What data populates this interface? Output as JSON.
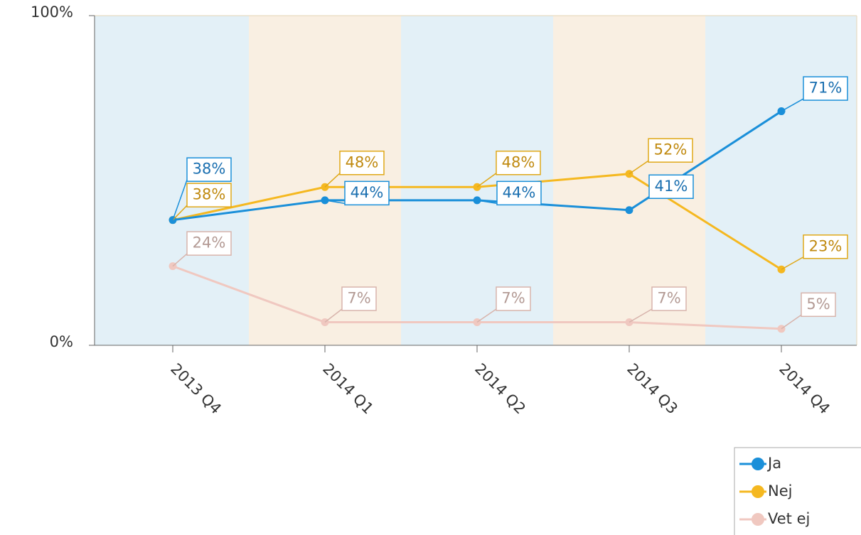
{
  "chart_data": {
    "type": "line",
    "categories": [
      "2013 Q4",
      "2014 Q1",
      "2014 Q2",
      "2014 Q3",
      "2014 Q4"
    ],
    "series": [
      {
        "name": "Ja",
        "color": "#1a8fd9",
        "values": [
          38,
          44,
          44,
          41,
          71
        ],
        "value_labels": [
          "38%",
          "44%",
          "44%",
          "41%",
          "71%"
        ]
      },
      {
        "name": "Nej",
        "color": "#f5b820",
        "values": [
          38,
          48,
          48,
          52,
          23
        ],
        "value_labels": [
          "38%",
          "48%",
          "48%",
          "52%",
          "23%"
        ]
      },
      {
        "name": "Vet ej",
        "color": "#f0c8c0",
        "values": [
          24,
          7,
          7,
          7,
          5
        ],
        "value_labels": [
          "24%",
          "7%",
          "7%",
          "7%",
          "5%"
        ]
      }
    ],
    "ylim": [
      0,
      100
    ],
    "yticks": [
      {
        "value": 0,
        "label": "0%"
      },
      {
        "value": 100,
        "label": "100%"
      }
    ],
    "legend": "bottom-right"
  }
}
